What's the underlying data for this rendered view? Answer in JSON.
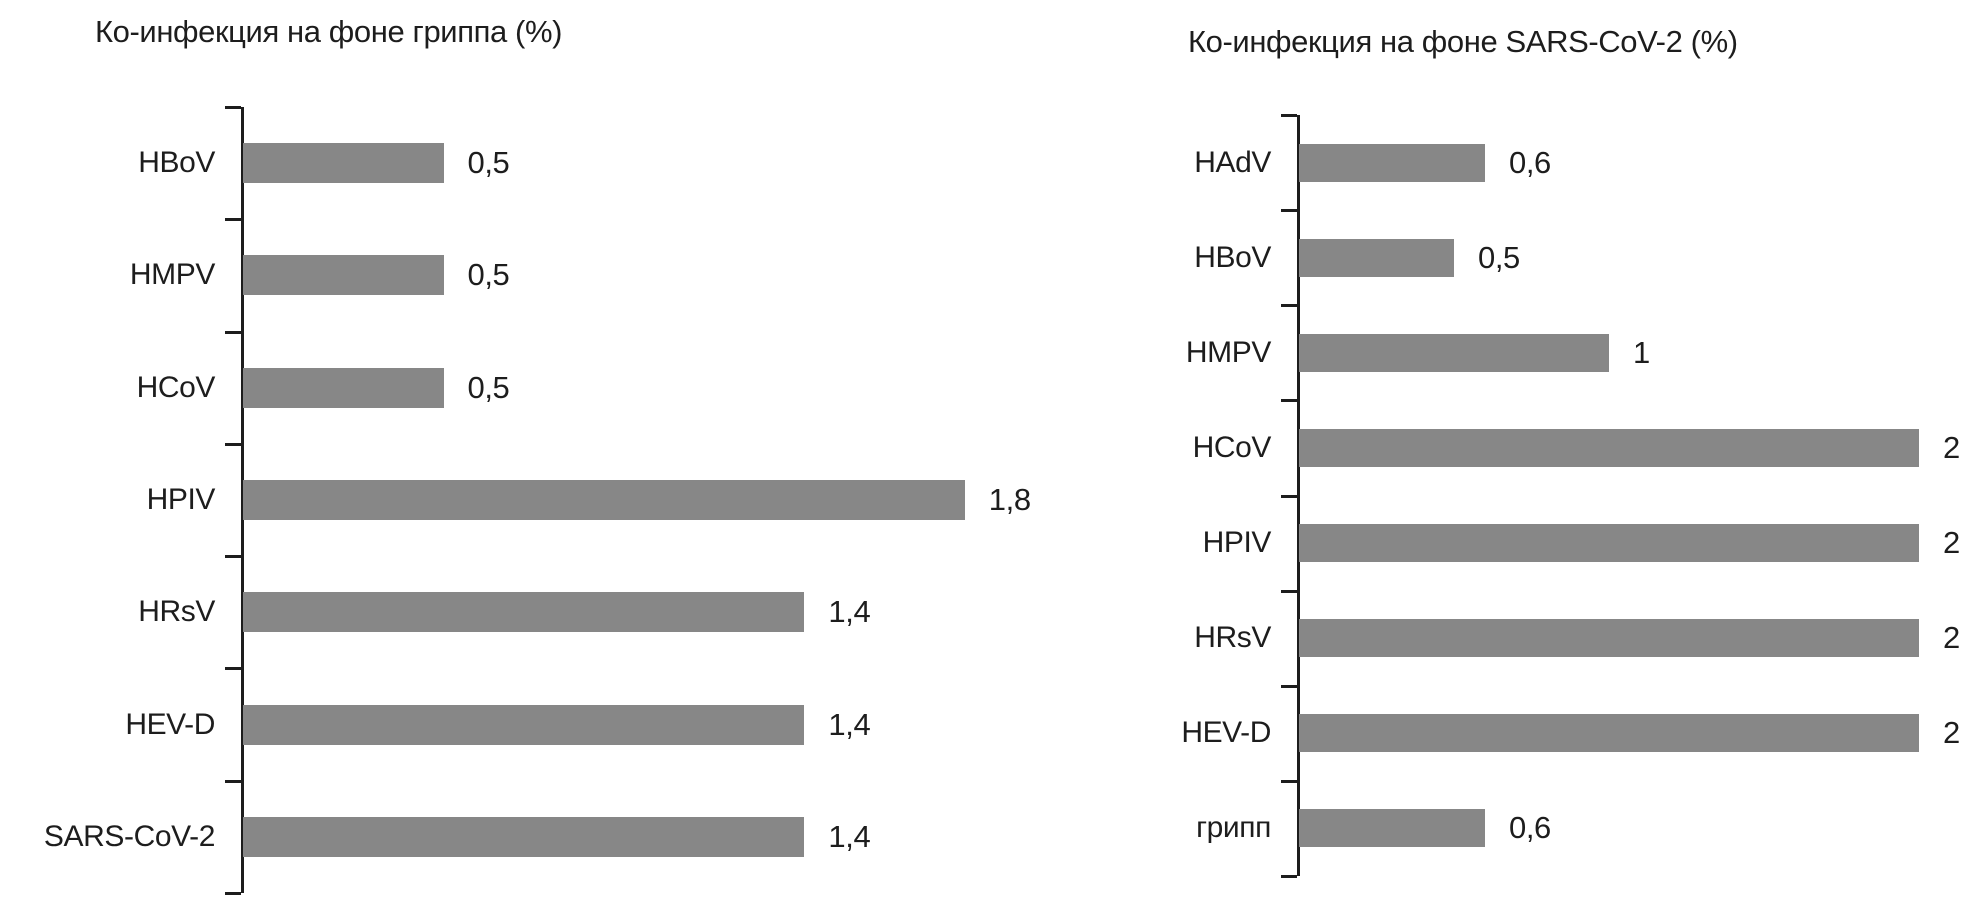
{
  "figure": {
    "background": "#ffffff",
    "bar_color": "#878787",
    "axis_color": "#1d1d1d",
    "text_color": "#1d1d1d"
  },
  "chart_data": [
    {
      "type": "bar",
      "orientation": "horizontal",
      "title": "Ко-инфекция на фоне гриппа (%)",
      "categories": [
        "HBoV",
        "HMPV",
        "HCoV",
        "HPIV",
        "HRsV",
        "HEV-D",
        "SARS-CoV-2"
      ],
      "values": [
        0.5,
        0.5,
        0.5,
        1.8,
        1.4,
        1.4,
        1.4
      ],
      "value_labels": [
        "0,5",
        "0,5",
        "0,5",
        "1,8",
        "1,4",
        "1,4",
        "1,4"
      ],
      "unit": "%",
      "xlim": [
        0,
        2
      ],
      "grid": false,
      "legend": "none",
      "data_labels": "outside-end"
    },
    {
      "type": "bar",
      "orientation": "horizontal",
      "title": "Ко-инфекция на фоне SARS-CoV-2 (%)",
      "categories": [
        "HAdV",
        "HBoV",
        "HMPV",
        "HCoV",
        "HPIV",
        "HRsV",
        "HEV-D",
        "грипп"
      ],
      "values": [
        0.6,
        0.5,
        1,
        2,
        2,
        2,
        2,
        0.6
      ],
      "value_labels": [
        "0,6",
        "0,5",
        "1",
        "2",
        "2",
        "2",
        "2",
        "0,6"
      ],
      "unit": "%",
      "xlim": [
        0,
        2.2
      ],
      "grid": false,
      "legend": "none",
      "data_labels": "outside-end"
    }
  ]
}
